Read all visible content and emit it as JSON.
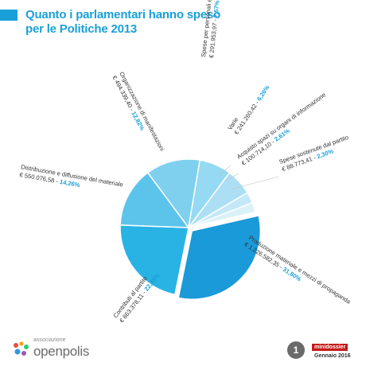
{
  "title": "Quanto i parlamentari hanno speso per le Politiche 2013",
  "chart_data": {
    "type": "pie",
    "title": "Quanto i parlamentari hanno speso per le Politiche 2013",
    "slices": [
      {
        "label": "Produzione materiale e mezzi di propaganda",
        "amount": "€ 1.226.582,35",
        "pct_label": "31,80%",
        "value": 31.8,
        "color": "#1a9ad8"
      },
      {
        "label": "Contributi al partito",
        "amount": "€ 863.378,11",
        "pct_label": "22,38%",
        "value": 22.38,
        "color": "#29b3e5"
      },
      {
        "label": "Distribuzione e diffusione del materiale",
        "amount": "€ 550.076,58",
        "pct_label": "14,26%",
        "value": 14.26,
        "color": "#5cc4ea"
      },
      {
        "label": "Organizzazione di manifestazioni",
        "amount": "€ 494.339,40",
        "pct_label": "12,82%",
        "value": 12.82,
        "color": "#7fd0ee"
      },
      {
        "label": "Spese per personali e prestazioni",
        "amount": "€ 291.953,97",
        "pct_label": "7,57%",
        "value": 7.57,
        "color": "#95d9f2"
      },
      {
        "label": "Varie",
        "amount": "€ 241.260,42",
        "pct_label": "6,26%",
        "value": 6.26,
        "color": "#addff4"
      },
      {
        "label": "Acquisto spazi su organi di informazione",
        "amount": "€ 100.714,10",
        "pct_label": "2,61%",
        "value": 2.61,
        "color": "#c3e8f7"
      },
      {
        "label": "Spese sostenute dal partito",
        "amount": "€ 88.773,41",
        "pct_label": "2,30%",
        "value": 2.3,
        "color": "#dbf1fa"
      }
    ]
  },
  "footer": {
    "logo_small": "associazione",
    "logo_word": "openpolis",
    "page_number": "1",
    "badge": "minidossier",
    "date": "Gennaio 2016"
  },
  "colors": {
    "accent": "#1aa0d8",
    "badge": "#c41a1a"
  }
}
